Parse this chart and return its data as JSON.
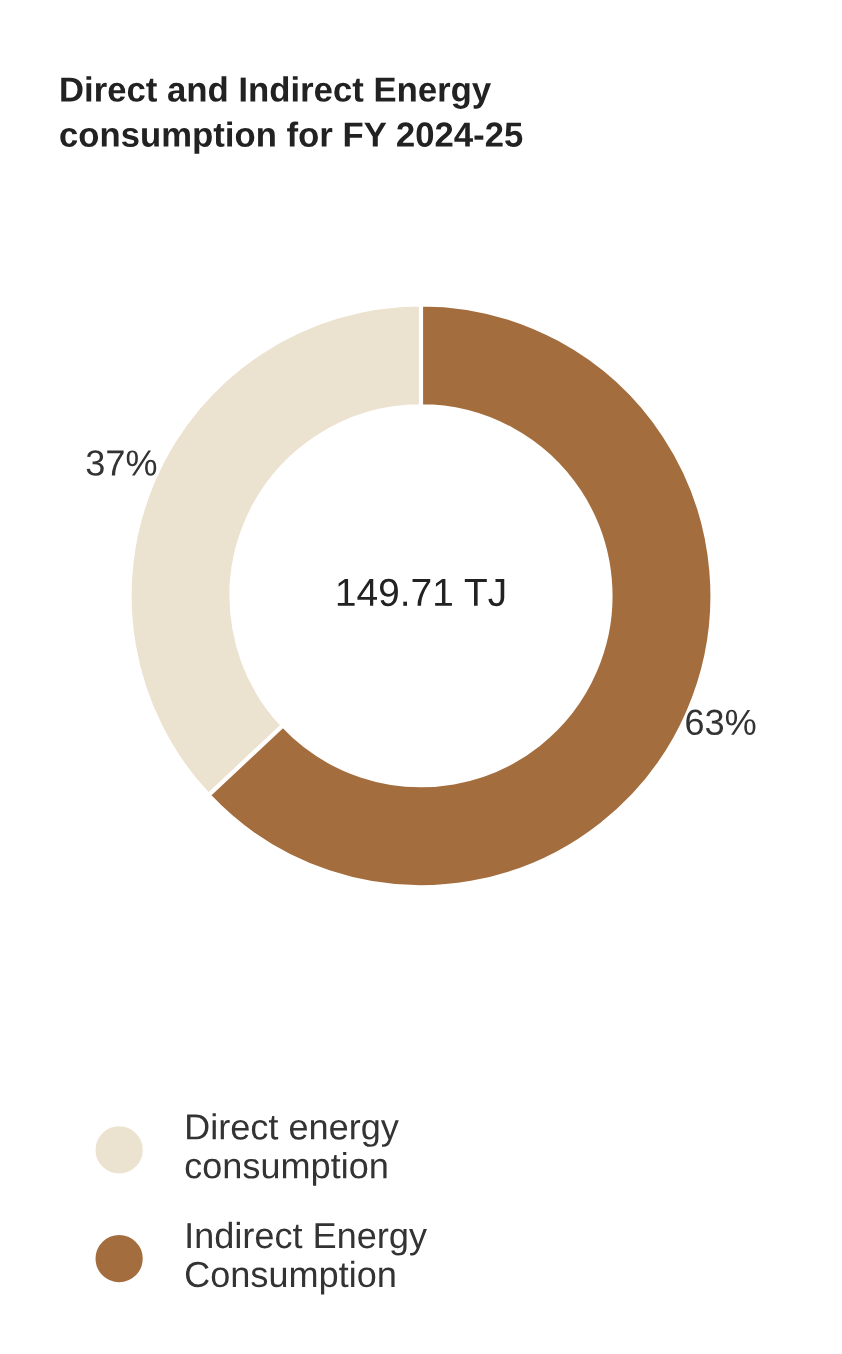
{
  "chart_data": {
    "type": "donut",
    "title": "Direct and Indirect Energy\nconsumption for FY 2024-25",
    "categories": [
      "Direct energy\nconsumption",
      "Indirect Energy\nConsumption"
    ],
    "values": [
      37,
      63
    ],
    "colors": [
      "#ece2d0",
      "#a46d3e"
    ],
    "value_labels": [
      "37%",
      "63%"
    ],
    "annotations": [
      "149.71 TJ"
    ],
    "legend": "bottom"
  }
}
